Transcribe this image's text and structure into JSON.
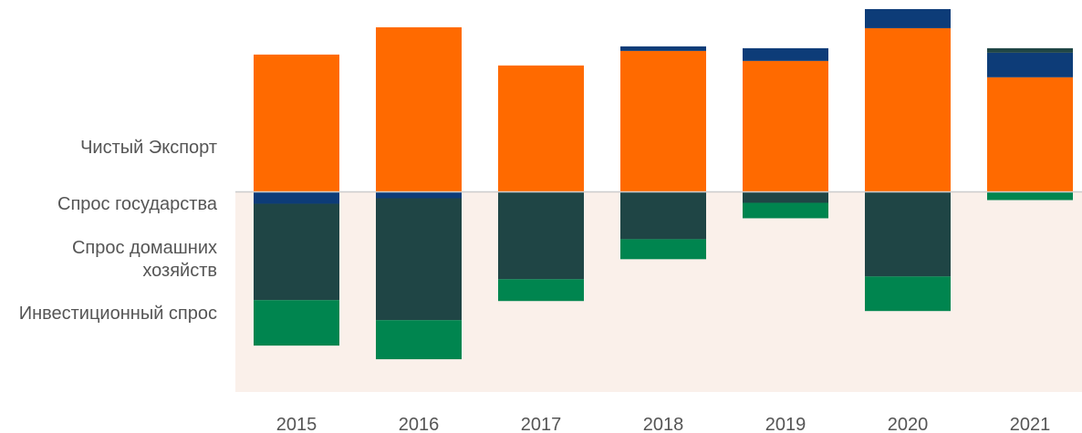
{
  "chart_data": {
    "type": "bar",
    "stacked": true,
    "categories": [
      "2015",
      "2016",
      "2017",
      "2018",
      "2019",
      "2020",
      "2021"
    ],
    "series": [
      {
        "name": "Чистый Экспорт",
        "color": "#ff6a00",
        "values": [
          15.1,
          18.1,
          13.9,
          15.5,
          14.4,
          18.0,
          12.6
        ]
      },
      {
        "name": "Спрос государства",
        "color": "#0d3c78",
        "values": [
          -1.3,
          -0.7,
          0,
          0.5,
          1.4,
          2.1,
          2.7
        ]
      },
      {
        "name": "Спрос домашних хозяйств",
        "color": "#1f4545",
        "values": [
          -10.6,
          -13.4,
          -9.6,
          -5.2,
          -1.2,
          -9.3,
          0.5
        ]
      },
      {
        "name": "Инвестиционный спрос",
        "color": "#00854f",
        "values": [
          -5.0,
          -4.3,
          -2.4,
          -2.2,
          -1.7,
          -3.8,
          -0.9
        ]
      }
    ],
    "ylim": [
      -22,
      21.1
    ]
  }
}
